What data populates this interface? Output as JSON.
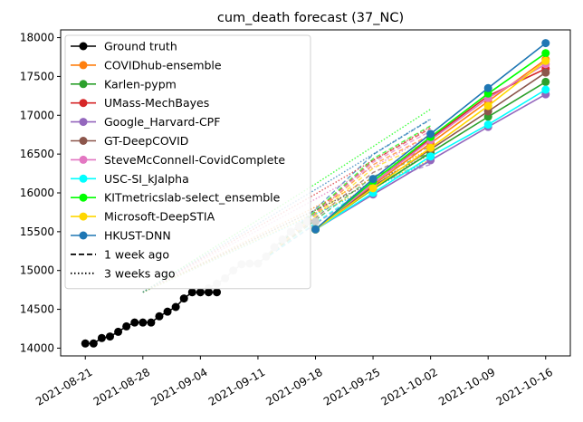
{
  "chart_data": {
    "type": "line",
    "title": "cum_death forecast (37_NC)",
    "xlabel": "",
    "ylabel": "",
    "x_ticks": [
      "2021-08-21",
      "2021-08-28",
      "2021-09-04",
      "2021-09-11",
      "2021-09-18",
      "2021-09-25",
      "2021-10-02",
      "2021-10-09",
      "2021-10-16"
    ],
    "y_ticks": [
      14000,
      14500,
      15000,
      15500,
      16000,
      16500,
      17000,
      17500,
      18000
    ],
    "xlim": [
      "2021-08-18",
      "2021-10-19"
    ],
    "ylim": [
      13900,
      18100
    ],
    "grid": false,
    "legend_position": "top-left",
    "ground_truth": {
      "name": "Ground truth",
      "color": "#000000",
      "dates": [
        "2021-08-21",
        "2021-08-22",
        "2021-08-23",
        "2021-08-24",
        "2021-08-25",
        "2021-08-26",
        "2021-08-27",
        "2021-08-28",
        "2021-08-29",
        "2021-08-30",
        "2021-08-31",
        "2021-09-01",
        "2021-09-02",
        "2021-09-03",
        "2021-09-04",
        "2021-09-05",
        "2021-09-06"
      ],
      "values": [
        14060,
        14060,
        14130,
        14150,
        14210,
        14280,
        14330,
        14330,
        14330,
        14410,
        14470,
        14530,
        14640,
        14720,
        14720,
        14720,
        14720
      ]
    },
    "ghost_truth": {
      "dates": [
        "2021-09-04",
        "2021-09-05",
        "2021-09-06",
        "2021-09-07",
        "2021-09-08",
        "2021-09-09",
        "2021-09-10",
        "2021-09-11",
        "2021-09-12",
        "2021-09-13",
        "2021-09-14",
        "2021-09-15",
        "2021-09-16",
        "2021-09-17",
        "2021-09-18"
      ],
      "values": [
        14720,
        14770,
        14830,
        14900,
        15000,
        15080,
        15090,
        15090,
        15180,
        15300,
        15400,
        15500,
        15570,
        15630,
        15630
      ]
    },
    "forecast_origin": {
      "date": "2021-09-18",
      "value": 15530
    },
    "forecast_dates": [
      "2021-09-25",
      "2021-10-02",
      "2021-10-09",
      "2021-10-16"
    ],
    "series": [
      {
        "name": "COVIDhub-ensemble",
        "color": "#ff7f0e",
        "values": [
          16100,
          16640,
          17180,
          17720
        ]
      },
      {
        "name": "Karlen-pypm",
        "color": "#2ca02c",
        "values": [
          16050,
          16520,
          16980,
          17430
        ]
      },
      {
        "name": "UMass-MechBayes",
        "color": "#d62728",
        "values": [
          16120,
          16700,
          17250,
          17600
        ]
      },
      {
        "name": "Google_Harvard-CPF",
        "color": "#9467bd",
        "values": [
          15980,
          16420,
          16850,
          17270
        ]
      },
      {
        "name": "GT-DeepCOVID",
        "color": "#8c564b",
        "values": [
          16080,
          16560,
          17050,
          17550
        ]
      },
      {
        "name": "SteveMcConnell-CovidComplete",
        "color": "#e377c2",
        "values": [
          16120,
          16680,
          17220,
          17660
        ]
      },
      {
        "name": "USC-SI_kJalpha",
        "color": "#00ffff",
        "values": [
          16000,
          16470,
          16880,
          17330
        ]
      },
      {
        "name": "KITmetricslab-select_ensemble",
        "color": "#00ff00",
        "values": [
          16150,
          16720,
          17280,
          17800
        ]
      },
      {
        "name": "Microsoft-DeepSTIA",
        "color": "#ffd700",
        "values": [
          16060,
          16580,
          17120,
          17700
        ]
      },
      {
        "name": "HKUST-DNN",
        "color": "#1f77b4",
        "values": [
          16180,
          16760,
          17350,
          17930
        ]
      }
    ],
    "legend_extra": [
      {
        "name": "1 week ago",
        "style": "dashed"
      },
      {
        "name": "3 weeks ago",
        "style": "dotted"
      }
    ]
  }
}
